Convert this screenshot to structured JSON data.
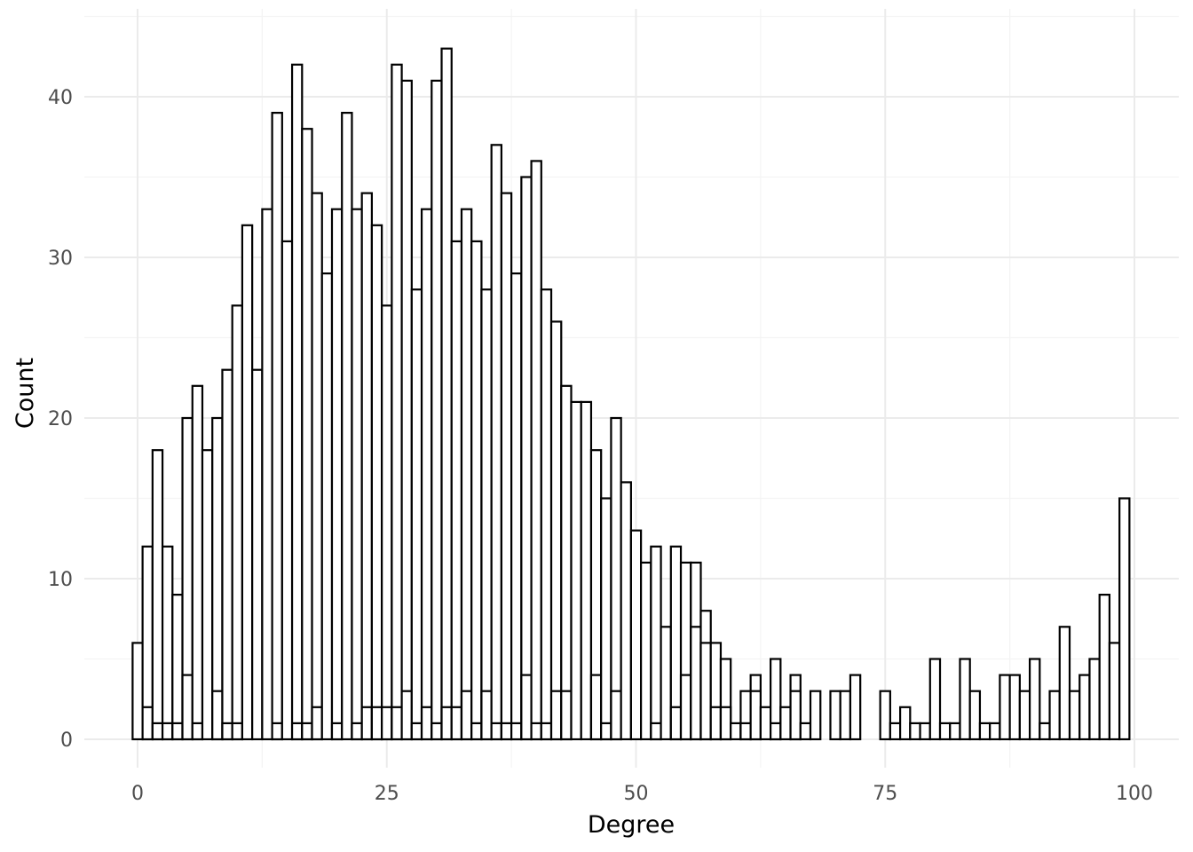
{
  "chart_data": {
    "type": "bar",
    "subtype": "histogram",
    "title": "",
    "xlabel": "Degree",
    "ylabel": "Count",
    "xlim": [
      -2.5,
      102
    ],
    "ylim": [
      -2,
      45
    ],
    "x_ticks": [
      0,
      25,
      50,
      75,
      100
    ],
    "x_tick_labels": [
      "0",
      "25",
      "50",
      "75",
      "100"
    ],
    "y_ticks": [
      0,
      10,
      20,
      30,
      40
    ],
    "y_tick_labels": [
      "0",
      "10",
      "20",
      "30",
      "40"
    ],
    "grid": true,
    "bin_width": 1,
    "bars_overlap": true,
    "fill_color": "#ffffff",
    "outline_color": "#000000",
    "bars": [
      {
        "x": 0,
        "y": 6
      },
      {
        "x": 1,
        "y": 12
      },
      {
        "x": 1,
        "y": 2
      },
      {
        "x": 2,
        "y": 18
      },
      {
        "x": 2,
        "y": 1
      },
      {
        "x": 3,
        "y": 12
      },
      {
        "x": 3,
        "y": 1
      },
      {
        "x": 4,
        "y": 9
      },
      {
        "x": 4,
        "y": 1
      },
      {
        "x": 5,
        "y": 20
      },
      {
        "x": 5,
        "y": 4
      },
      {
        "x": 6,
        "y": 22
      },
      {
        "x": 6,
        "y": 1
      },
      {
        "x": 7,
        "y": 18
      },
      {
        "x": 8,
        "y": 20
      },
      {
        "x": 8,
        "y": 3
      },
      {
        "x": 9,
        "y": 23
      },
      {
        "x": 9,
        "y": 1
      },
      {
        "x": 10,
        "y": 27
      },
      {
        "x": 10,
        "y": 1
      },
      {
        "x": 11,
        "y": 32
      },
      {
        "x": 12,
        "y": 23
      },
      {
        "x": 13,
        "y": 33
      },
      {
        "x": 14,
        "y": 39
      },
      {
        "x": 14,
        "y": 1
      },
      {
        "x": 15,
        "y": 31
      },
      {
        "x": 16,
        "y": 42
      },
      {
        "x": 16,
        "y": 1
      },
      {
        "x": 17,
        "y": 38
      },
      {
        "x": 17,
        "y": 1
      },
      {
        "x": 18,
        "y": 34
      },
      {
        "x": 18,
        "y": 2
      },
      {
        "x": 19,
        "y": 29
      },
      {
        "x": 20,
        "y": 33
      },
      {
        "x": 20,
        "y": 1
      },
      {
        "x": 21,
        "y": 39
      },
      {
        "x": 22,
        "y": 33
      },
      {
        "x": 22,
        "y": 1
      },
      {
        "x": 23,
        "y": 34
      },
      {
        "x": 23,
        "y": 2
      },
      {
        "x": 24,
        "y": 32
      },
      {
        "x": 24,
        "y": 2
      },
      {
        "x": 25,
        "y": 27
      },
      {
        "x": 25,
        "y": 2
      },
      {
        "x": 26,
        "y": 42
      },
      {
        "x": 26,
        "y": 2
      },
      {
        "x": 27,
        "y": 41
      },
      {
        "x": 27,
        "y": 3
      },
      {
        "x": 28,
        "y": 28
      },
      {
        "x": 28,
        "y": 1
      },
      {
        "x": 29,
        "y": 33
      },
      {
        "x": 29,
        "y": 2
      },
      {
        "x": 30,
        "y": 41
      },
      {
        "x": 30,
        "y": 1
      },
      {
        "x": 31,
        "y": 43
      },
      {
        "x": 31,
        "y": 2
      },
      {
        "x": 32,
        "y": 31
      },
      {
        "x": 32,
        "y": 2
      },
      {
        "x": 33,
        "y": 33
      },
      {
        "x": 33,
        "y": 3
      },
      {
        "x": 34,
        "y": 31
      },
      {
        "x": 34,
        "y": 1
      },
      {
        "x": 35,
        "y": 28
      },
      {
        "x": 35,
        "y": 3
      },
      {
        "x": 36,
        "y": 37
      },
      {
        "x": 36,
        "y": 1
      },
      {
        "x": 37,
        "y": 34
      },
      {
        "x": 37,
        "y": 1
      },
      {
        "x": 38,
        "y": 29
      },
      {
        "x": 38,
        "y": 1
      },
      {
        "x": 39,
        "y": 35
      },
      {
        "x": 39,
        "y": 4
      },
      {
        "x": 40,
        "y": 36
      },
      {
        "x": 40,
        "y": 1
      },
      {
        "x": 41,
        "y": 28
      },
      {
        "x": 41,
        "y": 1
      },
      {
        "x": 42,
        "y": 26
      },
      {
        "x": 42,
        "y": 3
      },
      {
        "x": 43,
        "y": 22
      },
      {
        "x": 43,
        "y": 3
      },
      {
        "x": 44,
        "y": 21
      },
      {
        "x": 45,
        "y": 21
      },
      {
        "x": 46,
        "y": 18
      },
      {
        "x": 46,
        "y": 4
      },
      {
        "x": 47,
        "y": 15
      },
      {
        "x": 47,
        "y": 1
      },
      {
        "x": 48,
        "y": 20
      },
      {
        "x": 48,
        "y": 3
      },
      {
        "x": 49,
        "y": 16
      },
      {
        "x": 50,
        "y": 13
      },
      {
        "x": 51,
        "y": 11
      },
      {
        "x": 52,
        "y": 12
      },
      {
        "x": 52,
        "y": 1
      },
      {
        "x": 53,
        "y": 7
      },
      {
        "x": 54,
        "y": 12
      },
      {
        "x": 54,
        "y": 2
      },
      {
        "x": 55,
        "y": 11
      },
      {
        "x": 55,
        "y": 4
      },
      {
        "x": 56,
        "y": 11
      },
      {
        "x": 56,
        "y": 7
      },
      {
        "x": 57,
        "y": 8
      },
      {
        "x": 57,
        "y": 6
      },
      {
        "x": 58,
        "y": 6
      },
      {
        "x": 58,
        "y": 2
      },
      {
        "x": 59,
        "y": 5
      },
      {
        "x": 59,
        "y": 2
      },
      {
        "x": 60,
        "y": 1
      },
      {
        "x": 61,
        "y": 3
      },
      {
        "x": 61,
        "y": 1
      },
      {
        "x": 62,
        "y": 4
      },
      {
        "x": 62,
        "y": 3
      },
      {
        "x": 63,
        "y": 2
      },
      {
        "x": 64,
        "y": 5
      },
      {
        "x": 64,
        "y": 1
      },
      {
        "x": 65,
        "y": 2
      },
      {
        "x": 66,
        "y": 4
      },
      {
        "x": 66,
        "y": 3
      },
      {
        "x": 67,
        "y": 1
      },
      {
        "x": 68,
        "y": 3
      },
      {
        "x": 70,
        "y": 3
      },
      {
        "x": 71,
        "y": 3
      },
      {
        "x": 72,
        "y": 4
      },
      {
        "x": 75,
        "y": 3
      },
      {
        "x": 76,
        "y": 1
      },
      {
        "x": 77,
        "y": 2
      },
      {
        "x": 78,
        "y": 1
      },
      {
        "x": 79,
        "y": 1
      },
      {
        "x": 80,
        "y": 5
      },
      {
        "x": 81,
        "y": 1
      },
      {
        "x": 82,
        "y": 1
      },
      {
        "x": 83,
        "y": 5
      },
      {
        "x": 84,
        "y": 3
      },
      {
        "x": 85,
        "y": 1
      },
      {
        "x": 86,
        "y": 1
      },
      {
        "x": 87,
        "y": 4
      },
      {
        "x": 88,
        "y": 4
      },
      {
        "x": 89,
        "y": 3
      },
      {
        "x": 90,
        "y": 5
      },
      {
        "x": 91,
        "y": 1
      },
      {
        "x": 92,
        "y": 3
      },
      {
        "x": 93,
        "y": 7
      },
      {
        "x": 94,
        "y": 3
      },
      {
        "x": 95,
        "y": 4
      },
      {
        "x": 96,
        "y": 5
      },
      {
        "x": 97,
        "y": 9
      },
      {
        "x": 98,
        "y": 6
      },
      {
        "x": 99,
        "y": 15
      }
    ]
  }
}
